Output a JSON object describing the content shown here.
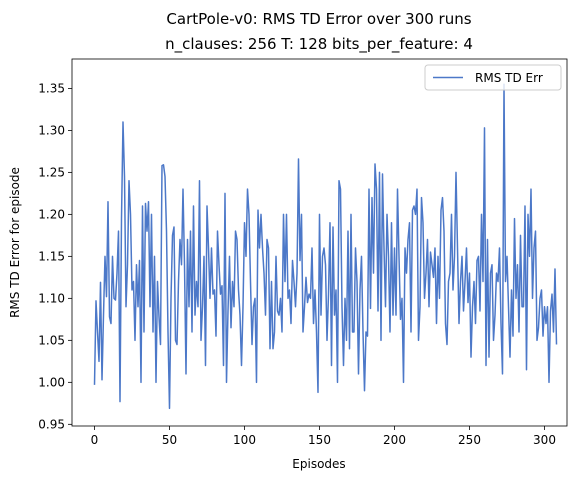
{
  "chart_data": {
    "type": "line",
    "title": "CartPole-v0: RMS TD Error over 300 runs",
    "subtitle": "n_clauses: 256 T: 128 bits_per_feature: 4",
    "xlabel": "Episodes",
    "ylabel": "RMS TD Error for episode",
    "xlim": [
      -15,
      315
    ],
    "ylim": [
      0.948,
      1.385
    ],
    "xticks": [
      0,
      50,
      100,
      150,
      200,
      250,
      300
    ],
    "yticks": [
      0.95,
      1.0,
      1.05,
      1.1,
      1.15,
      1.2,
      1.25,
      1.3,
      1.35
    ],
    "xtick_labels": [
      "0",
      "50",
      "100",
      "150",
      "200",
      "250",
      "300"
    ],
    "ytick_labels": [
      "0.95",
      "1.00",
      "1.05",
      "1.10",
      "1.15",
      "1.20",
      "1.25",
      "1.30",
      "1.35"
    ],
    "grid": false,
    "legend": "top-right",
    "colors": {
      "series": "#4c78c8"
    },
    "series": [
      {
        "name": "RMS TD Err",
        "x_start": 0,
        "x_step": 1,
        "values": [
          0.997,
          1.097,
          1.06,
          1.025,
          1.119,
          1.003,
          1.08,
          1.15,
          1.102,
          1.215,
          1.078,
          1.07,
          1.15,
          1.1,
          1.098,
          1.13,
          1.18,
          0.977,
          1.195,
          1.31,
          1.245,
          1.09,
          1.14,
          1.24,
          1.2,
          1.11,
          1.12,
          1.05,
          1.14,
          1.09,
          1.145,
          1.0,
          1.21,
          1.06,
          1.213,
          1.18,
          1.215,
          1.09,
          1.2,
          1.06,
          1.15,
          1.0,
          1.12,
          1.078,
          1.045,
          1.258,
          1.259,
          1.245,
          1.18,
          1.06,
          0.969,
          1.1,
          1.175,
          1.185,
          1.05,
          1.045,
          1.12,
          1.17,
          1.14,
          1.23,
          1.14,
          1.01,
          1.17,
          1.09,
          1.18,
          1.06,
          1.21,
          1.08,
          1.12,
          1.09,
          1.24,
          1.05,
          1.09,
          1.15,
          1.02,
          1.21,
          1.16,
          1.1,
          1.16,
          1.105,
          1.11,
          1.055,
          1.18,
          1.14,
          1.105,
          1.115,
          1.02,
          1.225,
          1.0,
          1.085,
          1.15,
          1.065,
          1.12,
          1.09,
          1.18,
          1.17,
          1.11,
          1.08,
          1.02,
          1.09,
          1.19,
          1.15,
          1.23,
          1.2,
          1.12,
          1.045,
          1.09,
          1.1,
          1.0,
          1.205,
          1.16,
          1.2,
          1.16,
          1.13,
          1.08,
          1.17,
          1.16,
          1.04,
          1.12,
          1.04,
          1.06,
          1.15,
          1.085,
          1.08,
          1.1,
          1.06,
          1.2,
          1.12,
          1.2,
          1.1,
          1.11,
          1.07,
          1.145,
          1.12,
          1.09,
          1.13,
          1.266,
          1.145,
          1.2,
          1.06,
          1.09,
          1.125,
          1.095,
          1.105,
          1.1,
          1.16,
          1.07,
          1.11,
          1.06,
          0.988,
          1.2,
          1.08,
          1.15,
          1.16,
          1.14,
          1.05,
          1.105,
          1.19,
          1.02,
          1.185,
          1.08,
          1.11,
          1.0,
          1.24,
          1.23,
          1.09,
          1.02,
          1.1,
          1.05,
          1.18,
          1.04,
          1.2,
          1.06,
          1.06,
          1.16,
          1.12,
          1.01,
          1.11,
          1.15,
          1.06,
          0.99,
          1.06,
          1.055,
          1.23,
          1.088,
          1.22,
          1.13,
          1.26,
          1.23,
          1.085,
          1.25,
          1.05,
          1.248,
          1.16,
          1.09,
          1.2,
          1.15,
          1.06,
          1.19,
          1.08,
          1.16,
          1.08,
          1.23,
          1.15,
          1.075,
          1.1,
          1.0,
          1.16,
          1.13,
          1.17,
          1.19,
          1.06,
          1.205,
          1.21,
          1.2,
          1.23,
          1.05,
          1.09,
          1.22,
          1.19,
          1.1,
          1.13,
          1.17,
          1.09,
          1.155,
          1.14,
          1.125,
          1.16,
          1.07,
          1.15,
          1.1,
          1.205,
          1.22,
          1.18,
          1.07,
          1.045,
          1.12,
          1.13,
          1.2,
          1.11,
          1.15,
          1.25,
          1.16,
          1.07,
          1.12,
          1.15,
          1.085,
          1.12,
          1.16,
          1.095,
          1.13,
          1.03,
          1.09,
          1.12,
          1.07,
          1.145,
          1.15,
          1.085,
          1.2,
          1.12,
          1.303,
          1.02,
          1.17,
          1.03,
          1.13,
          1.14,
          1.05,
          1.08,
          1.13,
          1.12,
          1.16,
          1.07,
          1.01,
          1.355,
          1.12,
          1.15,
          1.09,
          1.03,
          1.11,
          1.055,
          1.195,
          1.1,
          1.14,
          1.06,
          1.175,
          1.09,
          1.09,
          1.21,
          1.015,
          1.2,
          1.15,
          1.23,
          1.1,
          1.16,
          1.18,
          1.05,
          1.065,
          1.1,
          1.11,
          1.055,
          1.09,
          1.07,
          1.09,
          1.0,
          1.085,
          1.105,
          1.06,
          1.135,
          1.045
        ]
      }
    ]
  }
}
